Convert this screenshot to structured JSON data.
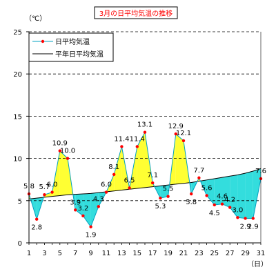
{
  "chart_data": {
    "type": "line",
    "title": "3月の日平均気温の推移",
    "ylabel": "（℃）",
    "xlabel": "（日）",
    "ylim": [
      0,
      25
    ],
    "xlim": [
      1,
      31
    ],
    "yticks": [
      0,
      5,
      10,
      15,
      20,
      25
    ],
    "xticks": [
      1,
      3,
      5,
      7,
      9,
      11,
      13,
      15,
      17,
      19,
      21,
      23,
      25,
      27,
      29,
      31
    ],
    "grid": "horizontal-dashed",
    "legend_position": "top-left",
    "colors": {
      "daily_line": "#00a0c0",
      "daily_marker": "#ff0000",
      "normal_line": "#000000",
      "above_fill": "#ffff33",
      "below_fill": "#33dddd"
    },
    "x": [
      1,
      2,
      3,
      4,
      5,
      6,
      7,
      8,
      9,
      10,
      11,
      12,
      13,
      14,
      15,
      16,
      17,
      18,
      19,
      20,
      21,
      22,
      23,
      24,
      25,
      26,
      27,
      28,
      29,
      30,
      31
    ],
    "series": [
      {
        "name": "日平均気温",
        "values": [
          5.8,
          2.8,
          5.7,
          6.0,
          10.9,
          10.0,
          3.9,
          3.2,
          1.9,
          4.3,
          6.0,
          8.1,
          11.4,
          6.5,
          11.4,
          13.1,
          7.1,
          5.3,
          5.5,
          12.9,
          12.1,
          5.8,
          7.7,
          5.6,
          4.5,
          4.6,
          4.2,
          3.0,
          2.9,
          2.9,
          7.6
        ]
      },
      {
        "name": "平年日平均気温",
        "values": [
          5.2,
          5.3,
          5.4,
          5.5,
          5.6,
          5.7,
          5.75,
          5.8,
          5.85,
          5.95,
          6.05,
          6.15,
          6.25,
          6.35,
          6.45,
          6.55,
          6.65,
          6.75,
          6.85,
          6.95,
          7.05,
          7.15,
          7.3,
          7.45,
          7.6,
          7.75,
          7.9,
          8.05,
          8.25,
          8.5,
          8.8
        ]
      }
    ],
    "data_labels": [
      "5.8",
      "2.8",
      "5.7",
      "6.0",
      "10.9",
      "10.0",
      "3.9",
      "3.2",
      "1.9",
      "4.3",
      "6.0",
      "8.1",
      "11.4",
      "6.5",
      "11.4",
      "13.1",
      "7.1",
      "5.3",
      "5.5",
      "12.9",
      "12.1",
      "5.8",
      "7.7",
      "5.6",
      "4.5",
      "4.6",
      "4.2",
      "3.0",
      "2.9",
      "2.9",
      "7.6"
    ]
  }
}
